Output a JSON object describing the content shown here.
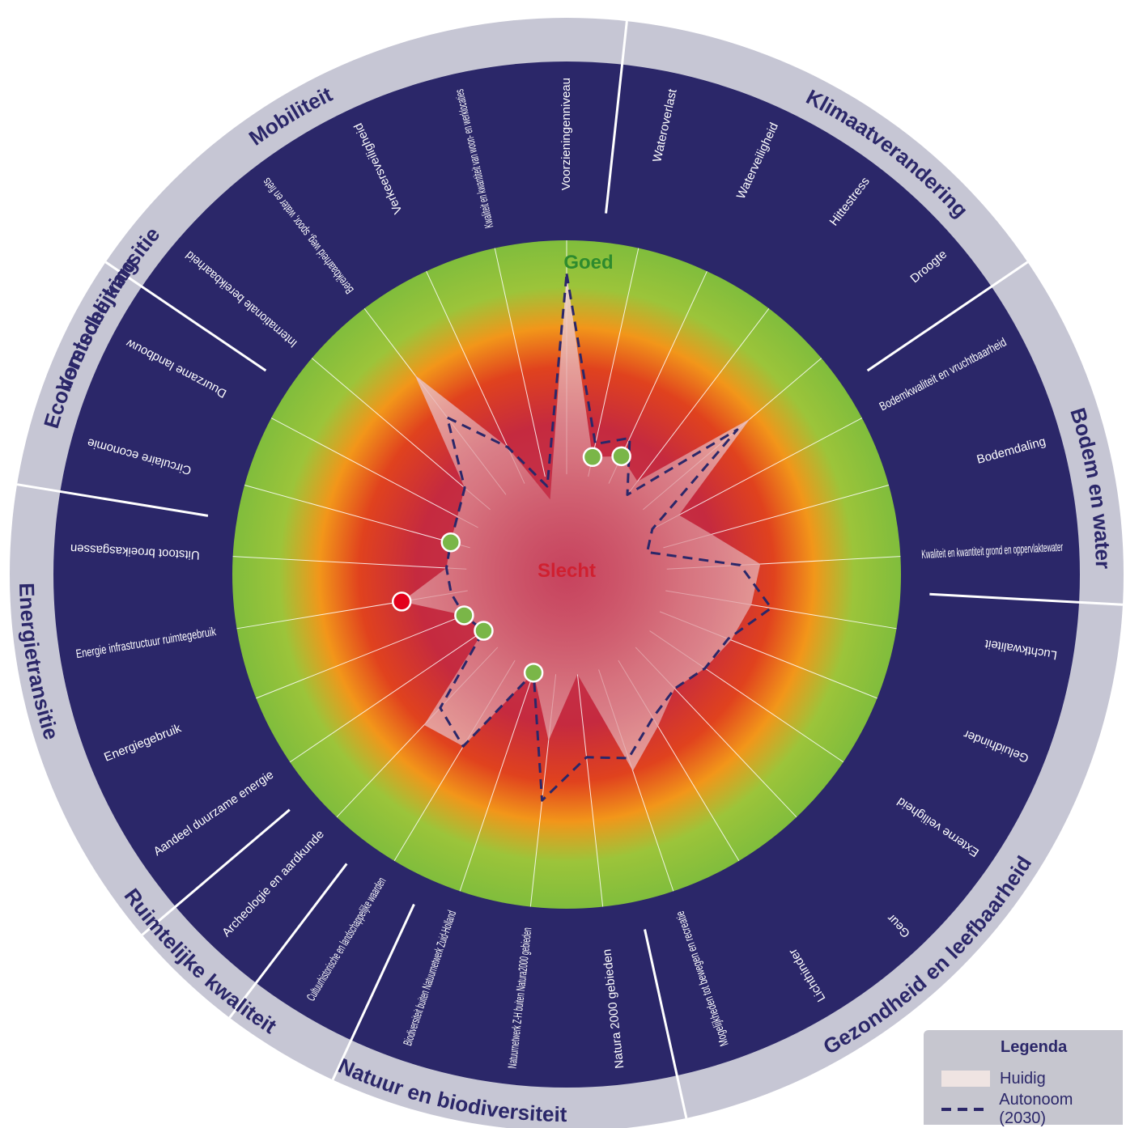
{
  "colors": {
    "outer_ring": "#c6c6d4",
    "inner_ring": "#2b2769",
    "good": "#8cc63f",
    "bad": "#c22a4a",
    "current_fill": "#f3dcd8",
    "dot_green": "#7ab648",
    "dot_red": "#e3001b",
    "label_good": "#2e8b2e",
    "label_bad": "#d02030"
  },
  "center_labels": {
    "good": "Goed",
    "bad": "Slecht"
  },
  "legend": {
    "title": "Legenda",
    "current": "Huidig",
    "autonomous": "Autonoom (2030)"
  },
  "chart_data": {
    "type": "radar",
    "scale": "0 = Slecht (centre), 1 = Goed (outer green edge)",
    "categories": [
      {
        "name": "Verstedelijking",
        "start": 18,
        "end": 1
      },
      {
        "name": "Klimaatverandering",
        "start": 1,
        "end": 5
      },
      {
        "name": "Bodem en water",
        "start": 5,
        "end": 8
      },
      {
        "name": "Gezondheid en leefbaarheid",
        "start": 8,
        "end": 14
      },
      {
        "name": "Natuur en biodiversiteit",
        "start": 14,
        "end": 17
      },
      {
        "name": "Ruimtelijke kwaliteit",
        "start": 17,
        "end": 19
      },
      {
        "name": "Energietransitie",
        "start": 19,
        "end": 23
      },
      {
        "name": "Economische transitie",
        "start": 23,
        "end": 25
      },
      {
        "name": "Mobiliteit",
        "start": 25,
        "end": 28
      }
    ],
    "axes": [
      {
        "name": "Voorzieningenniveau",
        "current": 0.9,
        "autonomous": 0.9,
        "dot": null
      },
      {
        "name": "Wateroverlast",
        "current": 0.36,
        "autonomous": 0.4,
        "dot": "green"
      },
      {
        "name": "Waterveiligheid",
        "current": 0.39,
        "autonomous": 0.45,
        "dot": "green"
      },
      {
        "name": "Hittestress",
        "current": 0.35,
        "autonomous": 0.3,
        "dot": null
      },
      {
        "name": "Droogte",
        "current": 0.72,
        "autonomous": 0.67,
        "dot": null
      },
      {
        "name": "Bodemkwaliteit en vruchtbaarheid",
        "current": 0.38,
        "autonomous": 0.29,
        "dot": null
      },
      {
        "name": "Bodemdaling",
        "current": 0.45,
        "autonomous": 0.25,
        "dot": null
      },
      {
        "name": "Kwaliteit en kwantiteit grond en oppervlaktewater",
        "current": 0.58,
        "autonomous": 0.52,
        "dot": null
      },
      {
        "name": "Luchtkwaliteit",
        "current": 0.56,
        "autonomous": 0.62,
        "dot": null
      },
      {
        "name": "Geluidhinder",
        "current": 0.53,
        "autonomous": 0.52,
        "dot": null
      },
      {
        "name": "Externe veiligheid",
        "current": 0.5,
        "autonomous": 0.5,
        "dot": null
      },
      {
        "name": "Geur",
        "current": 0.47,
        "autonomous": 0.47,
        "dot": null
      },
      {
        "name": "Lichthinder",
        "current": 0.53,
        "autonomous": 0.5,
        "dot": null
      },
      {
        "name": "Mogelijkheden tot bewegen en recreatie",
        "current": 0.62,
        "autonomous": 0.58,
        "dot": null
      },
      {
        "name": "Natura 2000 gebieden",
        "current": 0.3,
        "autonomous": 0.55,
        "dot": null
      },
      {
        "name": "Natuurnetwerk Z-H buiten Natura2000 gebieden",
        "current": 0.5,
        "autonomous": 0.68,
        "dot": null
      },
      {
        "name": "Biodiversiteit buiten Natuurnetwerk Zuid-Holland",
        "current": 0.31,
        "autonomous": 0.31,
        "dot": "green"
      },
      {
        "name": "Cultuurhistorische en landschappelijke waarden",
        "current": 0.6,
        "autonomous": 0.6,
        "dot": null
      },
      {
        "name": "Archeologie en aardkunde",
        "current": 0.62,
        "autonomous": 0.55,
        "dot": null
      },
      {
        "name": "Aandeel duurzame energie",
        "current": 0.3,
        "autonomous": 0.3,
        "dot": "green"
      },
      {
        "name": "Energiegebruik",
        "current": 0.33,
        "autonomous": 0.33,
        "dot": "green"
      },
      {
        "name": "Energie infrastructuur ruimtegebruik",
        "current": 0.5,
        "autonomous": 0.35,
        "dot": "red"
      },
      {
        "name": "Uitstoot broeikasgassen",
        "current": 0.36,
        "autonomous": 0.36,
        "dot": null
      },
      {
        "name": "Circulaire economie",
        "current": 0.36,
        "autonomous": 0.36,
        "dot": "green"
      },
      {
        "name": "Duurzame landbouw",
        "current": 0.37,
        "autonomous": 0.37,
        "dot": null
      },
      {
        "name": "Internationale bereikbaarheid",
        "current": 0.4,
        "autonomous": 0.4,
        "dot": null
      },
      {
        "name": "Bereikbaarheid weg, spoor, water en fiets",
        "current": 0.75,
        "autonomous": 0.59,
        "dot": null
      },
      {
        "name": "Verkeersveiligheid",
        "current": 0.42,
        "autonomous": 0.42,
        "dot": null
      },
      {
        "name": "Kwaliteit en kwantiteit van woon- en werklocaties",
        "current": 0.23,
        "autonomous": 0.27,
        "dot": null
      }
    ],
    "legend_position": "bottom-right",
    "grid": true
  }
}
